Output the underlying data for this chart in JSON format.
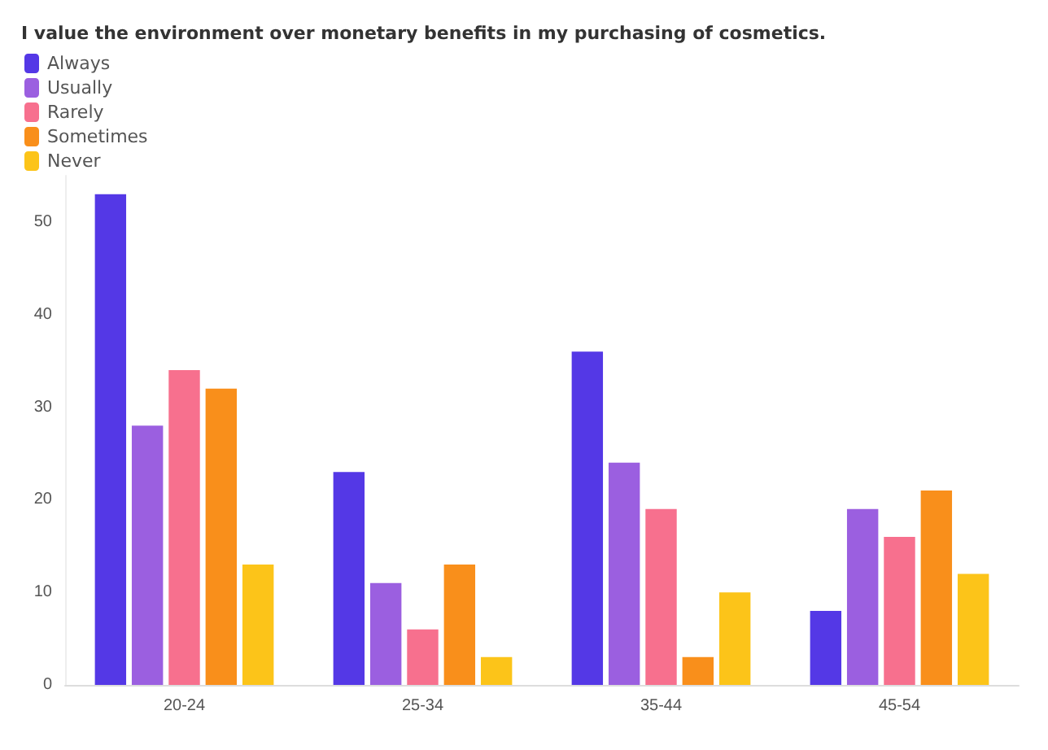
{
  "chart_data": {
    "type": "bar",
    "title": "I value the environment over monetary benefits in my purchasing of cosmetics.",
    "categories": [
      "20-24",
      "25-34",
      "35-44",
      "45-54"
    ],
    "series": [
      {
        "name": "Always",
        "color": "#5438e6",
        "values": [
          53,
          23,
          36,
          8
        ]
      },
      {
        "name": "Usually",
        "color": "#9b5fe0",
        "values": [
          28,
          11,
          24,
          19
        ]
      },
      {
        "name": "Rarely",
        "color": "#f7708e",
        "values": [
          34,
          6,
          19,
          16
        ]
      },
      {
        "name": "Sometimes",
        "color": "#f98f1b",
        "values": [
          32,
          13,
          3,
          21
        ]
      },
      {
        "name": "Never",
        "color": "#fcc419",
        "values": [
          13,
          3,
          10,
          12
        ]
      }
    ],
    "ylim": [
      0,
      55
    ],
    "yticks": [
      0,
      10,
      20,
      30,
      40,
      50
    ],
    "grid": false,
    "legend": "top left"
  }
}
